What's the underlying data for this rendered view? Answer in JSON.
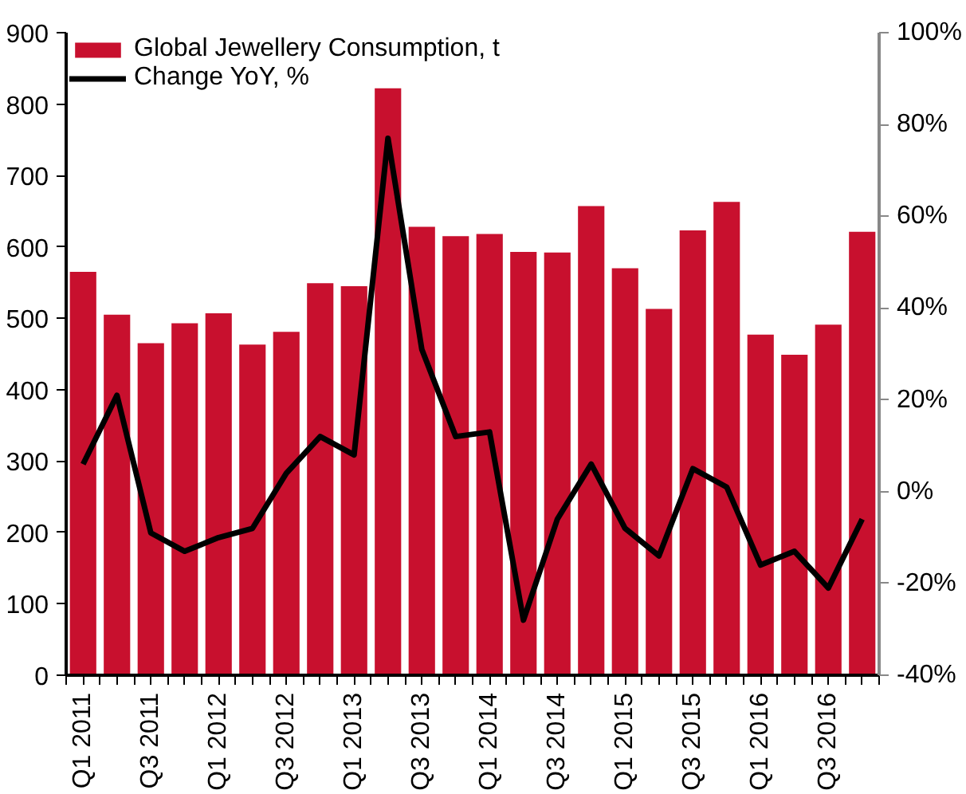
{
  "chart_data": {
    "type": "bar",
    "categories": [
      "Q1 2011",
      null,
      "Q3 2011",
      null,
      "Q1 2012",
      null,
      "Q3 2012",
      null,
      "Q1 2013",
      null,
      "Q3 2013",
      null,
      "Q1 2014",
      null,
      "Q3 2014",
      null,
      "Q1 2015",
      null,
      "Q3 2015",
      null,
      "Q1 2016",
      null,
      "Q3 2016",
      null
    ],
    "series": [
      {
        "name": "Global Jewellery Consumption, t",
        "color": "#c8102e",
        "values": [
          565,
          505,
          465,
          493,
          507,
          463,
          481,
          549,
          545,
          822,
          628,
          615,
          618,
          593,
          592,
          657,
          570,
          513,
          623,
          663,
          477,
          449,
          491,
          621
        ]
      },
      {
        "name": "Change YoY, %",
        "type": "line",
        "axis": "y2",
        "color": "#000000",
        "values": [
          6,
          21,
          -9,
          -13,
          -10,
          -8,
          4,
          12,
          8,
          77,
          31,
          12,
          13,
          -28,
          -6,
          6,
          -8,
          -14,
          5,
          1,
          -16,
          -13,
          -21,
          -6
        ]
      }
    ],
    "ylim": [
      0,
      900
    ],
    "yticks": [
      0,
      100,
      200,
      300,
      400,
      500,
      600,
      700,
      800,
      900
    ],
    "y2lim": [
      -40,
      100
    ],
    "y2ticks": [
      {
        "value": -40,
        "label": "-40%"
      },
      {
        "value": -20,
        "label": "-20%"
      },
      {
        "value": 0,
        "label": "0%"
      },
      {
        "value": 20,
        "label": "20%"
      },
      {
        "value": 40,
        "label": "40%"
      },
      {
        "value": 60,
        "label": "60%"
      },
      {
        "value": 80,
        "label": "80%"
      },
      {
        "value": 100,
        "label": "100%"
      }
    ],
    "grid": false,
    "legend": "top left",
    "marker": "none",
    "line_style": "solid"
  }
}
